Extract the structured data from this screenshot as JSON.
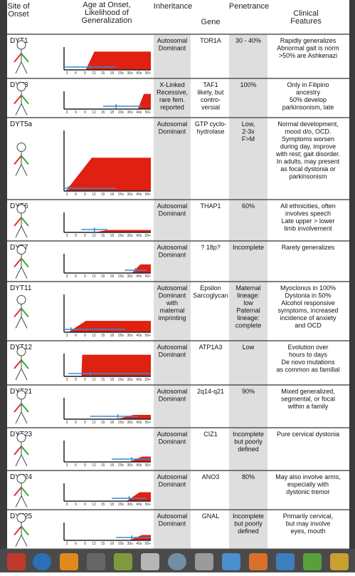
{
  "header": {
    "site": [
      "Site of",
      "Onset"
    ],
    "age": [
      "Age at Onset,",
      "Likelihood of",
      "Generalization"
    ],
    "inheritance": [
      "Inheritance"
    ],
    "gene": [
      "Gene"
    ],
    "penetrance": [
      "Penetrance"
    ],
    "features": [
      "Clinical",
      "Features"
    ]
  },
  "axis_labels": [
    "3",
    "6",
    "9",
    "12",
    "15",
    "18",
    "20s",
    "30s",
    "40s",
    "50+"
  ],
  "rows": [
    {
      "name": "DYT1",
      "inheritance": [
        "Autosomal",
        "Dominant"
      ],
      "gene": [
        "TOR1A"
      ],
      "penetrance": [
        "30 - 40%"
      ],
      "features": [
        "Rapidly generalizes",
        "Abnormal gait is norm",
        ">50% are Ashkenazi"
      ]
    },
    {
      "name": "DYT3",
      "inheritance": [
        "X-Linked",
        "Recessive,",
        "rare fem.",
        "reported"
      ],
      "gene": [
        "TAF1",
        "likely, but",
        "contro-",
        "versial"
      ],
      "penetrance": [
        "100%"
      ],
      "features": [
        "Only in Filipino",
        "ancestry",
        "50% develop",
        "parkinsonism, late"
      ]
    },
    {
      "name": "DYT5a",
      "inheritance": [
        "Autosomal",
        "Dominant"
      ],
      "gene": [
        "GTP cyclo-",
        "hydrolase"
      ],
      "penetrance": [
        "Low,",
        "2-3x",
        "F>M"
      ],
      "features": [
        "Normal development,",
        "mood d/o, OCD.",
        "Symptoms worsen",
        "during day, improve",
        "with rest; gait disorder.",
        "In adults, may present",
        "as focal dystonia or",
        "parkinsonism"
      ]
    },
    {
      "name": "DYT6",
      "inheritance": [
        "Autosomal",
        "Dominant"
      ],
      "gene": [
        "THAP1"
      ],
      "penetrance": [
        "60%"
      ],
      "features": [
        "All ethnicities, often",
        "involves speech",
        "Late upper > lower",
        "limb involvement"
      ]
    },
    {
      "name": "DYT7",
      "inheritance": [
        "Autosomal",
        "Dominant"
      ],
      "gene": [
        "? 18p?"
      ],
      "penetrance": [
        "Incomplete"
      ],
      "features": [
        "Rarely generalizes"
      ]
    },
    {
      "name": "DYT11",
      "inheritance": [
        "Autosomal",
        "Dominant",
        "with",
        "maternal",
        "imprinting"
      ],
      "gene": [
        "Epsilon",
        "Sarcoglycan"
      ],
      "penetrance": [
        "Maternal",
        "lineage:",
        "low",
        "Paternal",
        "lineage:",
        "complete"
      ],
      "features": [
        "Myoclonus in 100%",
        "Dystonia in 50%",
        "Alcohol responsive",
        "symptoms, increased",
        "incidence of anxiety",
        "and OCD"
      ]
    },
    {
      "name": "DYT12",
      "inheritance": [
        "Autosomal",
        "Dominant"
      ],
      "gene": [
        "ATP1A3"
      ],
      "penetrance": [
        "Low"
      ],
      "features": [
        "Evolution over",
        "hours to days",
        "De novo mutations",
        "as common as familial"
      ]
    },
    {
      "name": "DYT21",
      "inheritance": [
        "Autosomal",
        "Dominant"
      ],
      "gene": [
        "2q14-q21"
      ],
      "penetrance": [
        "90%"
      ],
      "features": [
        "Mixed generalized,",
        "segmental, or focal",
        "within a family"
      ]
    },
    {
      "name": "DYT23",
      "inheritance": [
        "Autosomal",
        "Dominant"
      ],
      "gene": [
        "CIZ1"
      ],
      "penetrance": [
        "Incomplete",
        "but poorly",
        "defined"
      ],
      "features": [
        "Pure cervical dystonia"
      ]
    },
    {
      "name": "DYT24",
      "inheritance": [
        "Autosomal",
        "Dominant"
      ],
      "gene": [
        "ANO3"
      ],
      "penetrance": [
        "80%"
      ],
      "features": [
        "May also involve arms,",
        "especially with",
        "dystonic tremor"
      ]
    },
    {
      "name": "DYT25",
      "inheritance": [
        "Autosomal",
        "Dominant"
      ],
      "gene": [
        "GNAL"
      ],
      "penetrance": [
        "Incomplete",
        "but poorly",
        "defined"
      ],
      "features": [
        "Primarily cervical,",
        "but may involve",
        "eyes, mouth"
      ]
    }
  ]
}
